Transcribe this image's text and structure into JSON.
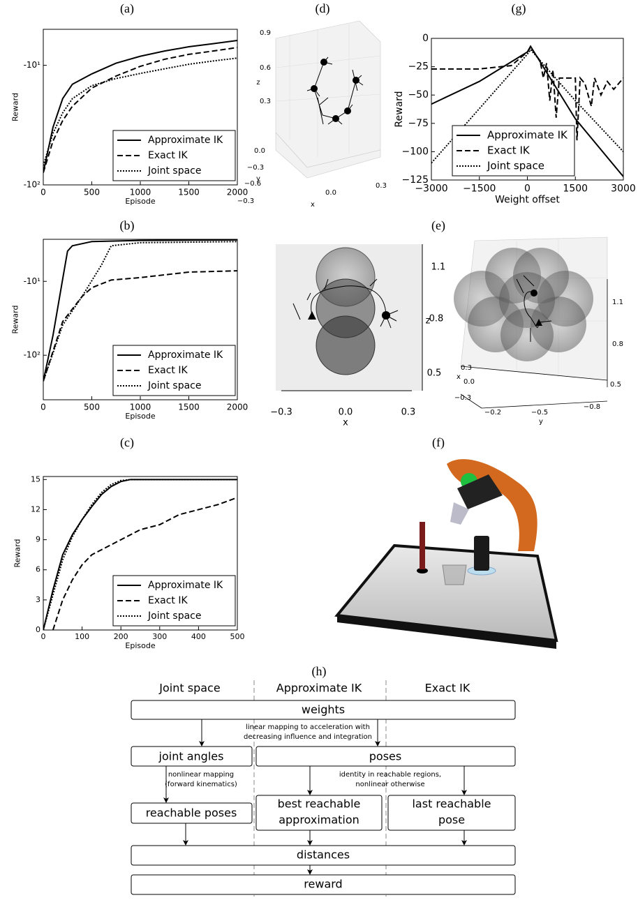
{
  "chart_data": [
    {
      "type": "line",
      "label": "(a)",
      "xlabel": "Episode",
      "ylabel": "Reward",
      "yscale": "log",
      "xlim": [
        0,
        2000
      ],
      "ylim": [
        -100,
        -5
      ],
      "xticks": [
        0,
        500,
        1000,
        1500,
        2000
      ],
      "yticks": [
        {
          "value": -10,
          "label": "-10¹"
        },
        {
          "value": -100,
          "label": "-10²"
        }
      ],
      "legend": "lower right",
      "series": [
        {
          "name": "Approximate IK",
          "color": "#000000",
          "linestyle": "solid",
          "x": [
            0,
            100,
            200,
            300,
            500,
            750,
            1000,
            1250,
            1500,
            1750,
            2000
          ],
          "values": [
            -79,
            -33,
            -19,
            -14.4,
            -11.8,
            -9.6,
            -8.4,
            -7.6,
            -7.0,
            -6.6,
            -6.2
          ]
        },
        {
          "name": "Exact IK",
          "color": "#000000",
          "linestyle": "dashed",
          "x": [
            0,
            100,
            200,
            300,
            500,
            750,
            1000,
            1250,
            1500,
            1750,
            2000
          ],
          "values": [
            -79,
            -43,
            -29,
            -22,
            -15.5,
            -12.3,
            -10.2,
            -8.9,
            -8.1,
            -7.6,
            -7.1
          ]
        },
        {
          "name": "Joint space",
          "color": "#000000",
          "linestyle": "dotted",
          "x": [
            0,
            100,
            200,
            300,
            500,
            750,
            1000,
            1250,
            1500,
            1750,
            2000
          ],
          "values": [
            -69,
            -37,
            -25,
            -19,
            -14.8,
            -12.9,
            -11.7,
            -10.7,
            -9.8,
            -9.2,
            -8.7
          ]
        }
      ]
    },
    {
      "type": "line",
      "label": "(b)",
      "xlabel": "Episode",
      "ylabel": "Reward",
      "yscale": "log",
      "xlim": [
        0,
        2000
      ],
      "ylim": [
        -400,
        -2.7
      ],
      "xticks": [
        0,
        500,
        1000,
        1500,
        2000
      ],
      "yticks": [
        {
          "value": -10,
          "label": "-10¹"
        },
        {
          "value": -100,
          "label": "-10²"
        }
      ],
      "legend": "lower right",
      "series": [
        {
          "name": "Approximate IK",
          "color": "#000000",
          "linestyle": "solid",
          "x": [
            0,
            100,
            200,
            250,
            300,
            500,
            1000,
            2000
          ],
          "values": [
            -224,
            -54,
            -9.3,
            -3.9,
            -3.3,
            -2.9,
            -2.8,
            -2.75
          ]
        },
        {
          "name": "Exact IK",
          "color": "#000000",
          "linestyle": "dashed",
          "x": [
            0,
            200,
            400,
            500,
            700,
            1000,
            1500,
            2000
          ],
          "values": [
            -224,
            -35,
            -16,
            -12.2,
            -9.6,
            -8.9,
            -7.5,
            -7.2
          ]
        },
        {
          "name": "Joint space",
          "color": "#000000",
          "linestyle": "dotted",
          "x": [
            0,
            200,
            400,
            600,
            700,
            1000,
            2000
          ],
          "values": [
            -224,
            -39,
            -16,
            -6.0,
            -3.3,
            -3.0,
            -2.9
          ]
        }
      ]
    },
    {
      "type": "line",
      "label": "(c)",
      "xlabel": "Episode",
      "ylabel": "Reward",
      "xlim": [
        0,
        500
      ],
      "ylim": [
        0,
        15.3
      ],
      "xticks": [
        0,
        100,
        200,
        300,
        400,
        500
      ],
      "yticks": [
        0,
        3,
        6,
        9,
        12,
        15
      ],
      "legend": "lower right",
      "series": [
        {
          "name": "Approximate IK",
          "color": "#000000",
          "linestyle": "solid",
          "x": [
            0,
            25,
            50,
            75,
            100,
            125,
            150,
            175,
            200,
            225,
            500
          ],
          "values": [
            0,
            4,
            7.5,
            9.5,
            11,
            12.3,
            13.5,
            14.3,
            14.8,
            15,
            15
          ]
        },
        {
          "name": "Exact IK",
          "color": "#000000",
          "linestyle": "dashed",
          "x": [
            25,
            50,
            75,
            100,
            125,
            150,
            175,
            200,
            250,
            300,
            350,
            400,
            450,
            500
          ],
          "values": [
            0,
            3,
            5,
            6.5,
            7.5,
            8,
            8.5,
            9,
            10,
            10.5,
            11.5,
            12,
            12.5,
            13.2
          ]
        },
        {
          "name": "Joint space",
          "color": "#000000",
          "linestyle": "dotted",
          "x": [
            0,
            25,
            50,
            75,
            100,
            125,
            150,
            175,
            200,
            225,
            500
          ],
          "values": [
            0,
            3.5,
            7,
            9.3,
            11,
            12.5,
            13.7,
            14.5,
            14.9,
            15,
            15
          ]
        }
      ]
    },
    {
      "type": "line",
      "label": "(g)",
      "xlabel": "Weight offset",
      "ylabel": "Reward",
      "xlim": [
        -3000,
        3000
      ],
      "ylim": [
        -125,
        0
      ],
      "xticks": [
        {
          "value": -3000,
          "label": "−3000"
        },
        {
          "value": -1500,
          "label": "−1500"
        },
        0,
        1500,
        3000
      ],
      "yticks": [
        0,
        {
          "value": -25,
          "label": "−25"
        },
        {
          "value": -50,
          "label": "−50"
        },
        {
          "value": -75,
          "label": "−75"
        },
        {
          "value": -100,
          "label": "−100"
        },
        {
          "value": -125,
          "label": "−125"
        }
      ],
      "legend": "lower left",
      "series": [
        {
          "name": "Approximate IK",
          "color": "#000000",
          "linestyle": "solid",
          "x": [
            -3000,
            -1500,
            0,
            100,
            1500,
            3000
          ],
          "values": [
            -58,
            -38,
            -12,
            -7,
            -71,
            -122
          ]
        },
        {
          "name": "Exact IK",
          "color": "#000000",
          "linestyle": "dashed",
          "x": [
            -3000,
            -1500,
            -500,
            0,
            100,
            400,
            500,
            600,
            700,
            800,
            900,
            1000,
            1500,
            1550,
            1650,
            1800,
            2000,
            2100,
            2300,
            2500,
            2700,
            3000
          ],
          "values": [
            -27,
            -27,
            -24,
            -12,
            -8,
            -20,
            -35,
            -22,
            -55,
            -28,
            -70,
            -35,
            -35,
            -90,
            -35,
            -40,
            -60,
            -35,
            -50,
            -38,
            -45,
            -35
          ]
        },
        {
          "name": "Joint space",
          "color": "#000000",
          "linestyle": "dotted",
          "x": [
            -3000,
            -1500,
            0,
            100,
            1500,
            3000
          ],
          "values": [
            -110,
            -62,
            -14,
            -10,
            -55,
            -100
          ]
        }
      ]
    }
  ],
  "plots_3d": [
    {
      "label": "(d)",
      "xlabel": "x",
      "ylabel": "y",
      "zlabel": "z",
      "xticks": [
        "−0.3",
        "0.0",
        "0.3"
      ],
      "yticks": [
        "0.0",
        "−0.3",
        "−0.6"
      ],
      "zticks": [
        "0.9",
        "0.6",
        "0.3"
      ]
    },
    {
      "xlabel": "x",
      "zlabel": "z",
      "xticks": [
        "−0.3",
        "0.0",
        "0.3"
      ],
      "zticks": [
        "1.1",
        "0.8",
        "0.5"
      ]
    },
    {
      "label": "(e)",
      "xlabel": "x",
      "ylabel": "y",
      "xticks": [
        "0.3",
        "0.0",
        "−0.3"
      ],
      "yticks": [
        "−0.2",
        "−0.5",
        "−0.8"
      ],
      "zticks": [
        "1.1",
        "0.8",
        "0.5"
      ]
    }
  ],
  "render": {
    "label": "(f)"
  },
  "diagram": {
    "label": "(h)",
    "columns": [
      "Joint space",
      "Approximate IK",
      "Exact IK"
    ],
    "boxes": [
      "weights",
      "joint angles",
      "poses",
      "reachable poses",
      [
        "best reachable",
        "approximation"
      ],
      [
        "last reachable",
        "pose"
      ],
      "distances",
      "reward"
    ],
    "notes": [
      [
        "linear mapping to acceleration with",
        "decreasing influence and integration"
      ],
      [
        "nonlinear mapping",
        "(forward kinematics)"
      ],
      [
        "identity in reachable regions,",
        "nonlinear otherwise"
      ]
    ]
  }
}
